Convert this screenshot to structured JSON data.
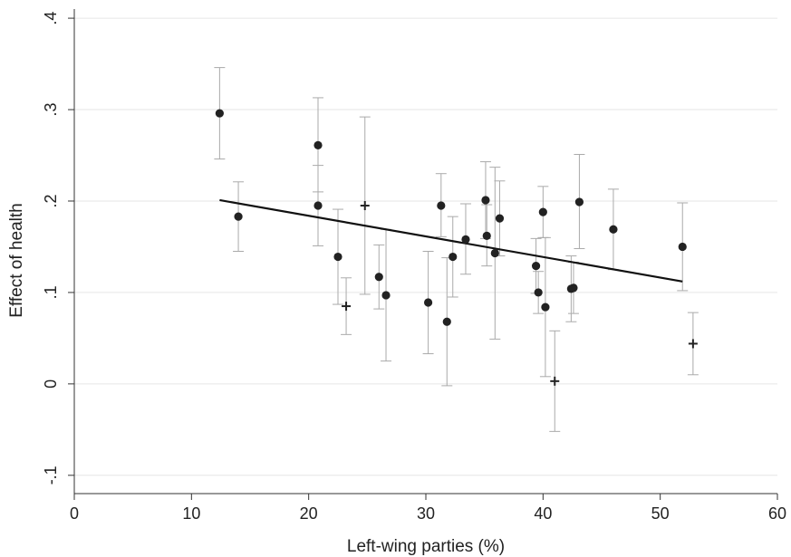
{
  "chart_data": {
    "type": "scatter",
    "xlabel": "Left-wing parties (%)",
    "ylabel": "Effect of health",
    "xlim": [
      0,
      60
    ],
    "ylim": [
      -0.12,
      0.41
    ],
    "xticks": [
      0,
      10,
      20,
      30,
      40,
      50,
      60
    ],
    "xtick_labels": [
      "0",
      "10",
      "20",
      "30",
      "40",
      "50",
      "60"
    ],
    "yticks": [
      -0.1,
      0,
      0.1,
      0.2,
      0.3,
      0.4
    ],
    "ytick_labels": [
      "-.1",
      "0",
      ".1",
      ".2",
      ".3",
      ".4"
    ],
    "grid": "horizontal",
    "colors": {
      "point": "#222222",
      "errorbar": "#aaaaaa",
      "fit": "#111111",
      "grid": "#e6e6e6",
      "axis": "#333333"
    },
    "series": [
      {
        "marker": "circle",
        "points": [
          {
            "x": 12.4,
            "y": 0.296,
            "lo": 0.246,
            "hi": 0.346
          },
          {
            "x": 14.0,
            "y": 0.183,
            "lo": 0.145,
            "hi": 0.221
          },
          {
            "x": 20.8,
            "y": 0.261,
            "lo": 0.21,
            "hi": 0.313
          },
          {
            "x": 20.8,
            "y": 0.195,
            "lo": 0.151,
            "hi": 0.239
          },
          {
            "x": 22.5,
            "y": 0.139,
            "lo": 0.087,
            "hi": 0.191
          },
          {
            "x": 26.0,
            "y": 0.117,
            "lo": 0.082,
            "hi": 0.152
          },
          {
            "x": 26.6,
            "y": 0.097,
            "lo": 0.025,
            "hi": 0.169
          },
          {
            "x": 30.2,
            "y": 0.089,
            "lo": 0.033,
            "hi": 0.145
          },
          {
            "x": 31.3,
            "y": 0.195,
            "lo": 0.161,
            "hi": 0.23
          },
          {
            "x": 31.8,
            "y": 0.068,
            "lo": -0.002,
            "hi": 0.138
          },
          {
            "x": 32.3,
            "y": 0.139,
            "lo": 0.095,
            "hi": 0.183
          },
          {
            "x": 33.4,
            "y": 0.158,
            "lo": 0.12,
            "hi": 0.197
          },
          {
            "x": 35.1,
            "y": 0.201,
            "lo": 0.159,
            "hi": 0.243
          },
          {
            "x": 35.2,
            "y": 0.162,
            "lo": 0.129,
            "hi": 0.196
          },
          {
            "x": 35.9,
            "y": 0.143,
            "lo": 0.049,
            "hi": 0.237
          },
          {
            "x": 36.3,
            "y": 0.181,
            "lo": 0.14,
            "hi": 0.222
          },
          {
            "x": 39.4,
            "y": 0.129,
            "lo": 0.099,
            "hi": 0.159
          },
          {
            "x": 39.6,
            "y": 0.1,
            "lo": 0.077,
            "hi": 0.123
          },
          {
            "x": 40.0,
            "y": 0.188,
            "lo": 0.16,
            "hi": 0.216
          },
          {
            "x": 40.2,
            "y": 0.084,
            "lo": 0.008,
            "hi": 0.16
          },
          {
            "x": 42.4,
            "y": 0.104,
            "lo": 0.068,
            "hi": 0.14
          },
          {
            "x": 42.6,
            "y": 0.105,
            "lo": 0.077,
            "hi": 0.133
          },
          {
            "x": 43.1,
            "y": 0.199,
            "lo": 0.148,
            "hi": 0.251
          },
          {
            "x": 46.0,
            "y": 0.169,
            "lo": 0.125,
            "hi": 0.213
          },
          {
            "x": 51.9,
            "y": 0.15,
            "lo": 0.102,
            "hi": 0.198
          }
        ]
      },
      {
        "marker": "plus",
        "points": [
          {
            "x": 23.2,
            "y": 0.085,
            "lo": 0.054,
            "hi": 0.116
          },
          {
            "x": 24.8,
            "y": 0.195,
            "lo": 0.098,
            "hi": 0.292
          },
          {
            "x": 41.0,
            "y": 0.003,
            "lo": -0.052,
            "hi": 0.058
          },
          {
            "x": 52.8,
            "y": 0.044,
            "lo": 0.01,
            "hi": 0.078
          }
        ]
      }
    ],
    "fit_line": {
      "x": [
        12.4,
        51.9
      ],
      "y": [
        0.201,
        0.112
      ]
    }
  }
}
